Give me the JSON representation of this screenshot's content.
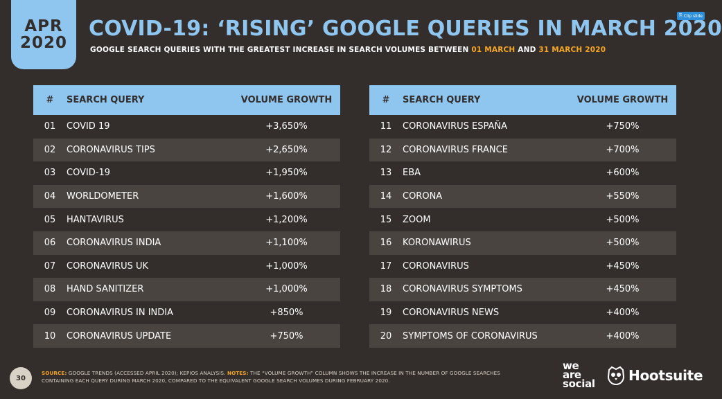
{
  "badge": {
    "month": "APR",
    "year": "2020"
  },
  "title": "COVID-19: ‘RISING’ GOOGLE QUERIES IN MARCH 2020",
  "subtitle": {
    "prefix": "GOOGLE SEARCH QUERIES WITH THE GREATEST INCREASE IN SEARCH VOLUMES BETWEEN ",
    "date_start": "01 MARCH",
    "mid": " AND ",
    "date_end": "31 MARCH 2020"
  },
  "clip_button": "Clip slide",
  "table": {
    "headers": {
      "num": "#",
      "query": "SEARCH QUERY",
      "growth": "VOLUME GROWTH"
    },
    "left_rows": [
      {
        "num": "01",
        "query": "COVID 19",
        "growth": "+3,650%"
      },
      {
        "num": "02",
        "query": "CORONAVIRUS TIPS",
        "growth": "+2,650%"
      },
      {
        "num": "03",
        "query": "COVID-19",
        "growth": "+1,950%"
      },
      {
        "num": "04",
        "query": "WORLDOMETER",
        "growth": "+1,600%"
      },
      {
        "num": "05",
        "query": "HANTAVIRUS",
        "growth": "+1,200%"
      },
      {
        "num": "06",
        "query": "CORONAVIRUS INDIA",
        "growth": "+1,100%"
      },
      {
        "num": "07",
        "query": "CORONAVIRUS UK",
        "growth": "+1,000%"
      },
      {
        "num": "08",
        "query": "HAND SANITIZER",
        "growth": "+1,000%"
      },
      {
        "num": "09",
        "query": "CORONAVIRUS IN INDIA",
        "growth": "+850%"
      },
      {
        "num": "10",
        "query": "CORONAVIRUS UPDATE",
        "growth": "+750%"
      }
    ],
    "right_rows": [
      {
        "num": "11",
        "query": "CORONAVIRUS ESPAÑA",
        "growth": "+750%"
      },
      {
        "num": "12",
        "query": "CORONAVIRUS FRANCE",
        "growth": "+700%"
      },
      {
        "num": "13",
        "query": "EBA",
        "growth": "+600%"
      },
      {
        "num": "14",
        "query": "CORONA",
        "growth": "+550%"
      },
      {
        "num": "15",
        "query": "ZOOM",
        "growth": "+500%"
      },
      {
        "num": "16",
        "query": "KORONAWIRUS",
        "growth": "+500%"
      },
      {
        "num": "17",
        "query": "CORONAVIRUS",
        "growth": "+450%"
      },
      {
        "num": "18",
        "query": "CORONAVIRUS SYMPTOMS",
        "growth": "+450%"
      },
      {
        "num": "19",
        "query": "CORONAVIRUS NEWS",
        "growth": "+400%"
      },
      {
        "num": "20",
        "query": "SYMPTOMS OF CORONAVIRUS",
        "growth": "+400%"
      }
    ]
  },
  "footer": {
    "page_number": "30",
    "source_label": "SOURCE:",
    "source_text": " GOOGLE TRENDS (ACCESSED APRIL 2020); KEPIOS ANALYSIS. ",
    "notes_label": "NOTES:",
    "notes_text": " THE “VOLUME GROWTH” COLUMN SHOWS THE INCREASE IN THE NUMBER OF GOOGLE SEARCHES CONTAINING EACH QUERY DURING MARCH 2020, COMPARED TO THE EQUIVALENT GOOGLE SEARCH VOLUMES DURING FEBRUARY 2020."
  },
  "logos": {
    "was_line1": "we",
    "was_line2": "are",
    "was_line3": "social",
    "hootsuite": "Hootsuite"
  },
  "colors": {
    "background": "#332e2b",
    "accent": "#8ec6f0",
    "highlight": "#f5a623",
    "row_alt": "#4a4441"
  }
}
